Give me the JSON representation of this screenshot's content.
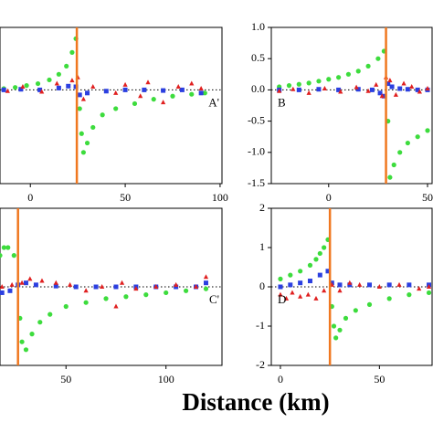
{
  "chart_data": [
    {
      "type": "scatter",
      "xlim": [
        -16,
        101
      ],
      "ylim": [
        -1.5,
        1.0
      ],
      "xticks": [
        0,
        50,
        100
      ],
      "zero_line": true,
      "fault_x": 24.5,
      "label": "A'",
      "label_corner": "right",
      "series": [
        {
          "color": "#3ddc3d",
          "marker": "circle",
          "x": [
            -14,
            -8,
            -2,
            4,
            10,
            15,
            19,
            22,
            24,
            26,
            27,
            28,
            30,
            33,
            38,
            45,
            55,
            65,
            75,
            85,
            92
          ],
          "values": [
            0.02,
            0.04,
            0.07,
            0.1,
            0.16,
            0.25,
            0.38,
            0.6,
            0.82,
            -0.3,
            -0.7,
            -1.0,
            -0.85,
            -0.6,
            -0.4,
            -0.3,
            -0.22,
            -0.15,
            -0.1,
            -0.07,
            -0.05
          ]
        },
        {
          "color": "#2b3fe0",
          "marker": "square",
          "x": [
            -14,
            -5,
            5,
            15,
            20,
            24,
            26,
            30,
            40,
            50,
            60,
            70,
            80,
            90
          ],
          "values": [
            0,
            0.01,
            0,
            0.03,
            0.06,
            0.05,
            -0.08,
            -0.05,
            -0.02,
            0,
            0,
            -0.01,
            0,
            -0.05
          ]
        },
        {
          "color": "#e02020",
          "marker": "triangle",
          "x": [
            -12,
            -4,
            6,
            14,
            22,
            25,
            28,
            33,
            45,
            50,
            58,
            62,
            70,
            78,
            85,
            90
          ],
          "values": [
            -0.02,
            0.05,
            -0.03,
            0.1,
            0.15,
            0.2,
            -0.15,
            0.05,
            -0.05,
            0.08,
            -0.1,
            0.12,
            -0.2,
            0.05,
            0.1,
            0.02
          ]
        }
      ]
    },
    {
      "type": "scatter",
      "xlim": [
        -29,
        52.3
      ],
      "ylim": [
        -1.5,
        1.0
      ],
      "xticks": [
        0,
        50
      ],
      "yticks": [
        {
          "value": 1.0,
          "label": "1.0"
        },
        0.5,
        {
          "value": 0.0,
          "label": "0.0"
        },
        -0.5,
        {
          "value": -1.0,
          "label": "-1.0"
        },
        -1.5
      ],
      "zero_line": true,
      "fault_x": 29,
      "label": "B",
      "label_corner": "left",
      "series": [
        {
          "color": "#3ddc3d",
          "marker": "circle",
          "x": [
            -25,
            -20,
            -15,
            -10,
            -5,
            0,
            5,
            10,
            15,
            20,
            25,
            28,
            30,
            31,
            33,
            36,
            40,
            45,
            50
          ],
          "values": [
            0.05,
            0.07,
            0.09,
            0.11,
            0.14,
            0.17,
            0.2,
            0.25,
            0.3,
            0.38,
            0.5,
            0.62,
            -0.5,
            -1.4,
            -1.2,
            -1.0,
            -0.85,
            -0.75,
            -0.65
          ]
        },
        {
          "color": "#2b3fe0",
          "marker": "square",
          "x": [
            -25,
            -15,
            -5,
            5,
            15,
            22,
            26,
            28,
            30,
            32,
            36,
            40,
            45,
            50
          ],
          "values": [
            0,
            0,
            0.01,
            0,
            0.01,
            0,
            -0.05,
            -0.1,
            0.1,
            0.05,
            0.02,
            0.01,
            0,
            0
          ]
        },
        {
          "color": "#e02020",
          "marker": "triangle",
          "x": [
            -25,
            -18,
            -10,
            -2,
            6,
            14,
            20,
            24,
            27,
            29,
            31,
            34,
            38,
            42,
            46,
            50
          ],
          "values": [
            -0.02,
            0.01,
            -0.05,
            0.02,
            -0.03,
            0.04,
            -0.02,
            0.08,
            -0.1,
            0.2,
            0.15,
            -0.08,
            0.1,
            0.05,
            -0.03,
            0.02
          ]
        }
      ]
    },
    {
      "type": "scatter",
      "xlim": [
        17,
        128
      ],
      "ylim": [
        -2,
        2
      ],
      "xticks": [
        50,
        100
      ],
      "zero_line": true,
      "fault_x": 26,
      "label": "C'",
      "label_corner": "right",
      "series": [
        {
          "color": "#3ddc3d",
          "marker": "circle",
          "x": [
            17,
            19,
            21,
            24,
            27,
            28,
            30,
            33,
            37,
            42,
            50,
            60,
            70,
            80,
            90,
            100,
            110,
            120
          ],
          "values": [
            0.8,
            1.0,
            1.0,
            0.8,
            -0.8,
            -1.4,
            -1.6,
            -1.2,
            -0.9,
            -0.7,
            -0.5,
            -0.4,
            -0.3,
            -0.25,
            -0.2,
            -0.15,
            -0.1,
            -0.05
          ]
        },
        {
          "color": "#2b3fe0",
          "marker": "square",
          "x": [
            18,
            22,
            26,
            30,
            35,
            45,
            55,
            65,
            75,
            85,
            95,
            105,
            115,
            120
          ],
          "values": [
            -0.15,
            -0.1,
            0.05,
            0.1,
            0.05,
            0.02,
            0,
            0,
            0,
            0,
            0,
            0,
            0,
            0.1
          ]
        },
        {
          "color": "#e02020",
          "marker": "triangle",
          "x": [
            18,
            23,
            28,
            32,
            38,
            45,
            52,
            60,
            68,
            75,
            78,
            85,
            95,
            105,
            115,
            120
          ],
          "values": [
            0,
            0.05,
            0.1,
            0.2,
            0.15,
            0.1,
            0.05,
            -0.1,
            0,
            -0.5,
            0.1,
            -0.05,
            0,
            0.05,
            0,
            0.25
          ]
        }
      ]
    },
    {
      "type": "scatter",
      "xlim": [
        -4.6,
        76.6
      ],
      "ylim": [
        -2,
        2
      ],
      "xticks": [
        0,
        50
      ],
      "yticks": [
        2,
        1,
        0,
        -1,
        -2
      ],
      "zero_line": true,
      "fault_x": 25,
      "label": "D",
      "label_corner": "left",
      "series": [
        {
          "color": "#3ddc3d",
          "marker": "circle",
          "x": [
            0,
            5,
            10,
            15,
            18,
            20,
            22,
            24,
            26,
            27,
            28,
            30,
            33,
            38,
            45,
            55,
            65,
            75
          ],
          "values": [
            0.2,
            0.3,
            0.4,
            0.55,
            0.7,
            0.85,
            1.0,
            1.2,
            -0.5,
            -1.0,
            -1.3,
            -1.1,
            -0.8,
            -0.6,
            -0.45,
            -0.3,
            -0.2,
            -0.15
          ]
        },
        {
          "color": "#2b3fe0",
          "marker": "square",
          "x": [
            0,
            5,
            10,
            15,
            20,
            24,
            26,
            30,
            35,
            45,
            55,
            65,
            75
          ],
          "values": [
            0,
            0.05,
            0.1,
            0.15,
            0.3,
            0.4,
            0.1,
            0.05,
            0.05,
            0.05,
            0.05,
            0.05,
            0.05
          ]
        },
        {
          "color": "#e02020",
          "marker": "triangle",
          "x": [
            0,
            3,
            6,
            10,
            14,
            18,
            22,
            26,
            30,
            35,
            40,
            50,
            60,
            70,
            75
          ],
          "values": [
            -0.2,
            -0.3,
            -0.15,
            -0.25,
            -0.2,
            -0.3,
            -0.1,
            0.05,
            -0.1,
            0.1,
            0.05,
            0,
            0.05,
            -0.05,
            0
          ]
        }
      ]
    }
  ],
  "page": {
    "title": "Distance (km)"
  }
}
